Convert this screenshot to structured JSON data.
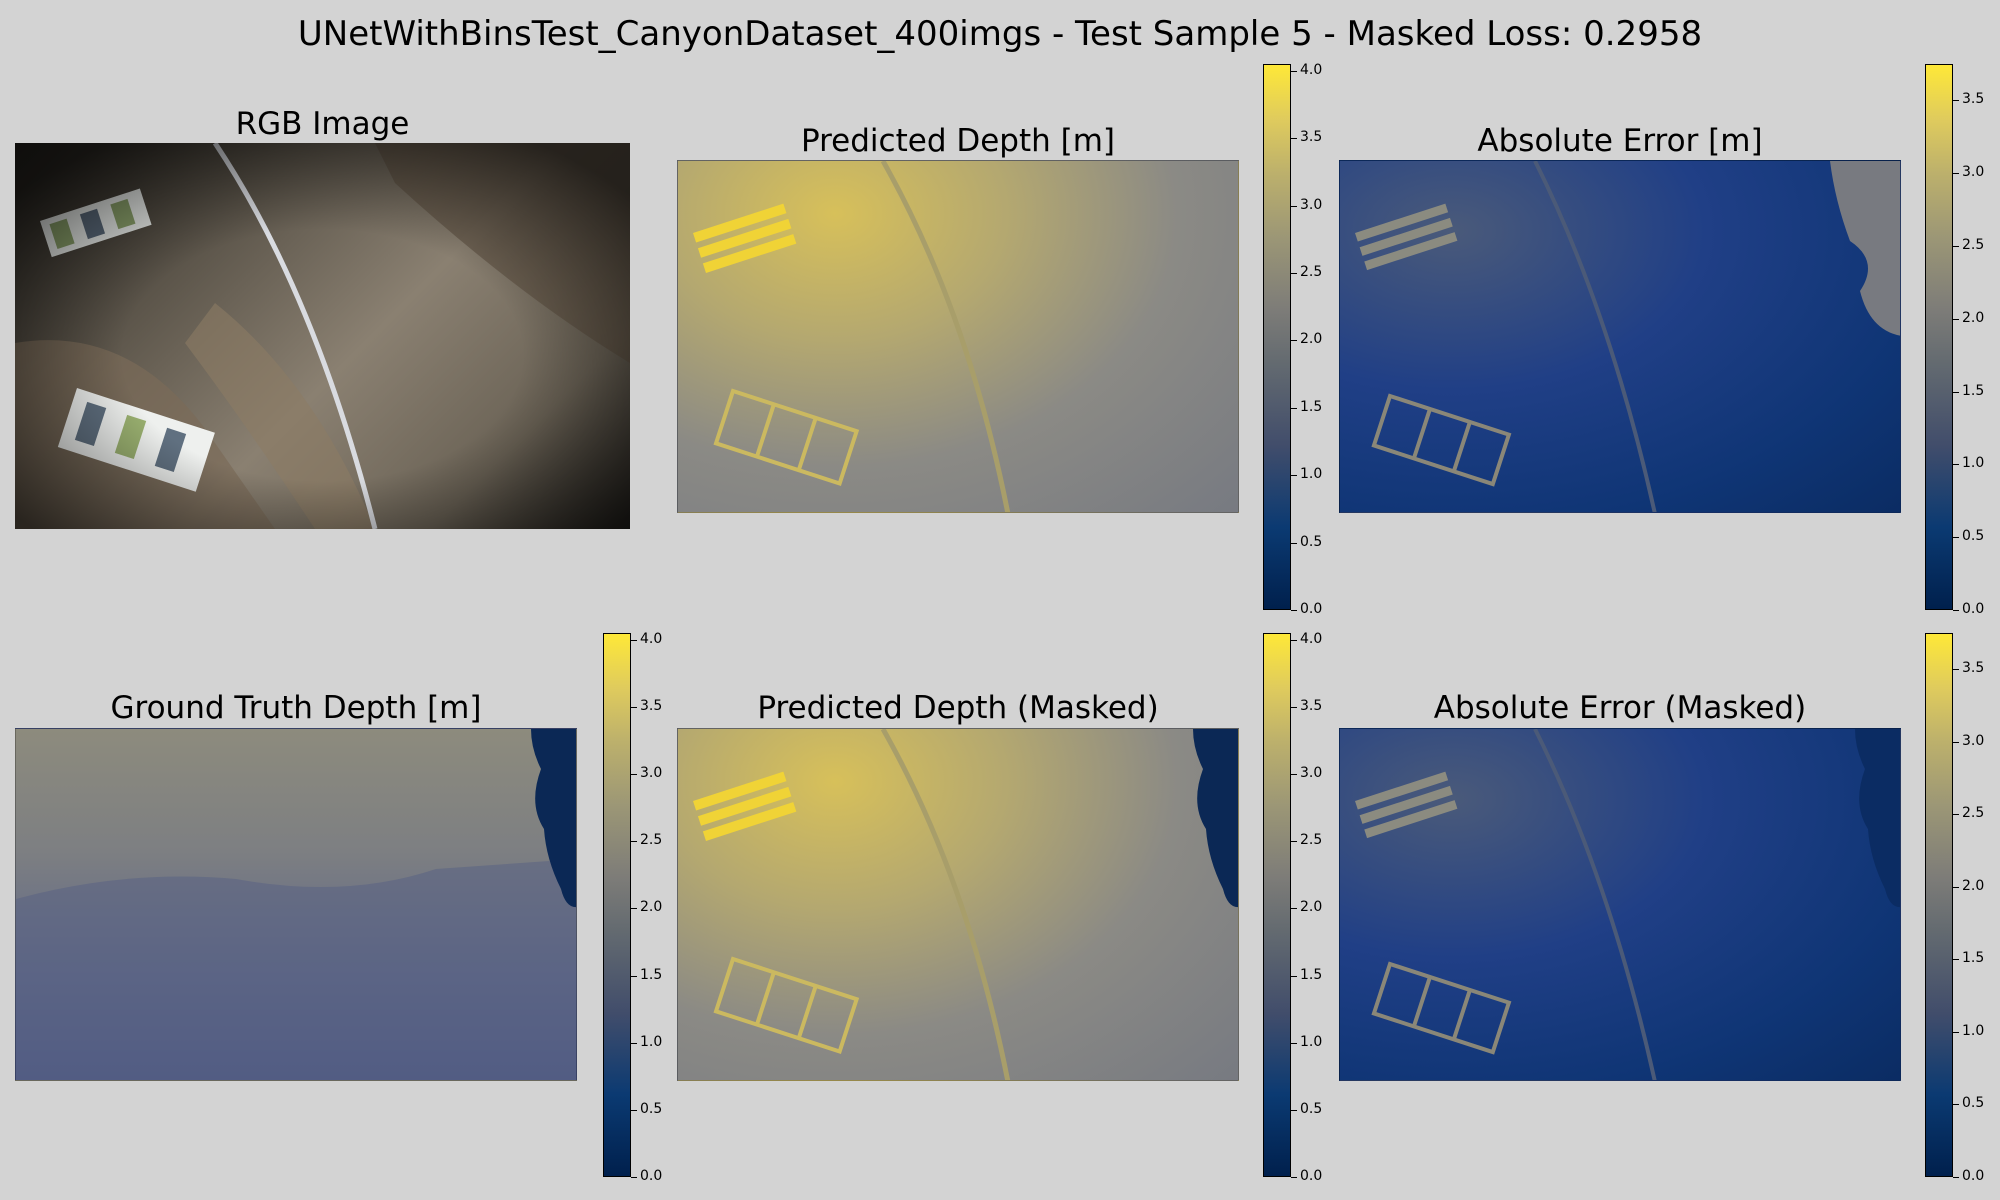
{
  "title": "UNetWithBinsTest_CanyonDataset_400imgs - Test Sample 5 - Masked Loss: 0.2958",
  "panels": {
    "rgb": "RGB Image",
    "pred": "Predicted Depth [m]",
    "err": "Absolute Error [m]",
    "gt": "Ground Truth Depth [m]",
    "pred_masked": "Predicted Depth (Masked)",
    "err_masked": "Absolute Error (Masked)"
  },
  "colormap": "cividis",
  "colorbars": {
    "depth_ticks": [
      "0.0",
      "0.5",
      "1.0",
      "1.5",
      "2.0",
      "2.5",
      "3.0",
      "3.5",
      "4.0"
    ],
    "depth_range": [
      0,
      4.05
    ],
    "error_ticks": [
      "0.0",
      "0.5",
      "1.0",
      "1.5",
      "2.0",
      "2.5",
      "3.0",
      "3.5"
    ],
    "error_range": [
      0,
      3.75
    ]
  }
}
